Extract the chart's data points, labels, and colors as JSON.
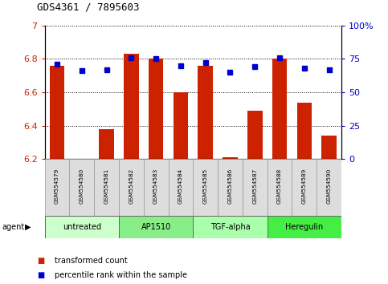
{
  "title": "GDS4361 / 7895603",
  "samples": [
    "GSM554579",
    "GSM554580",
    "GSM554581",
    "GSM554582",
    "GSM554583",
    "GSM554584",
    "GSM554585",
    "GSM554586",
    "GSM554587",
    "GSM554588",
    "GSM554589",
    "GSM554590"
  ],
  "bar_values": [
    6.76,
    6.2,
    6.38,
    6.83,
    6.8,
    6.6,
    6.76,
    6.21,
    6.49,
    6.8,
    6.54,
    6.34
  ],
  "dot_values": [
    71,
    66,
    67,
    76,
    75,
    70,
    72,
    65,
    69,
    76,
    68,
    67
  ],
  "bar_bottom": 6.2,
  "ylim_left": [
    6.2,
    7.0
  ],
  "ylim_right": [
    0,
    100
  ],
  "yticks_left": [
    6.2,
    6.4,
    6.6,
    6.8,
    7.0
  ],
  "ytick_labels_left": [
    "6.2",
    "6.4",
    "6.6",
    "6.8",
    "7"
  ],
  "yticks_right": [
    0,
    25,
    50,
    75,
    100
  ],
  "ytick_labels_right": [
    "0",
    "25",
    "50",
    "75",
    "100%"
  ],
  "groups": [
    {
      "label": "untreated",
      "start": 0,
      "end": 3,
      "color": "#ccffcc"
    },
    {
      "label": "AP1510",
      "start": 3,
      "end": 6,
      "color": "#88ee88"
    },
    {
      "label": "TGF-alpha",
      "start": 6,
      "end": 9,
      "color": "#aaffaa"
    },
    {
      "label": "Heregulin",
      "start": 9,
      "end": 12,
      "color": "#44ee44"
    }
  ],
  "bar_color": "#cc2200",
  "dot_color": "#0000cc",
  "agent_label": "agent",
  "legend_bar_label": "transformed count",
  "legend_dot_label": "percentile rank within the sample",
  "left_tick_color": "#cc2200",
  "right_tick_color": "#0000cc",
  "xlim": [
    -0.5,
    11.5
  ],
  "bar_width": 0.6
}
